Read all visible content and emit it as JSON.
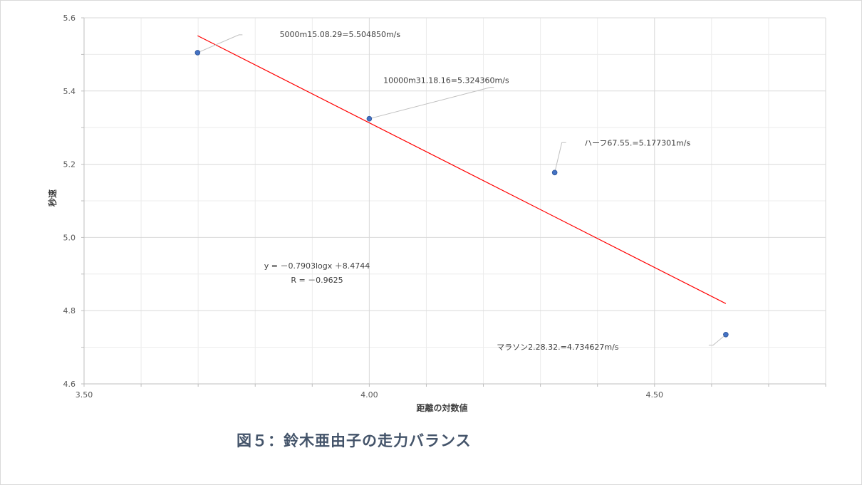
{
  "caption": "図５：鈴木亜由子の走力バランス",
  "chart_data": {
    "type": "scatter",
    "xlabel": "距離の対数値",
    "ylabel": "秒速",
    "xlim": [
      3.5,
      4.8
    ],
    "ylim": [
      4.6,
      5.6
    ],
    "x_ticks": [
      "3.50",
      "4.00",
      "4.50"
    ],
    "y_ticks": [
      "4.6",
      "4.8",
      "5.0",
      "5.2",
      "5.4",
      "5.6"
    ],
    "grid": true,
    "points": [
      {
        "x": 3.699,
        "y": 5.50485,
        "label": "5000m15.08.29=5.504850m/s"
      },
      {
        "x": 4.0,
        "y": 5.32436,
        "label": "10000m31.18.16=5.324360m/s"
      },
      {
        "x": 4.325,
        "y": 5.177301,
        "label": "ハーフ67.55.=5.177301m/s"
      },
      {
        "x": 4.625,
        "y": 4.734627,
        "label": "マラソン2.28.32.=4.734627m/s"
      }
    ],
    "trendline": {
      "slope": -0.7903,
      "intercept": 8.4744,
      "x_range": [
        3.699,
        4.625
      ]
    },
    "equation": "y = －0.7903logx ＋8.4744",
    "r_value": "R = －0.9625"
  }
}
